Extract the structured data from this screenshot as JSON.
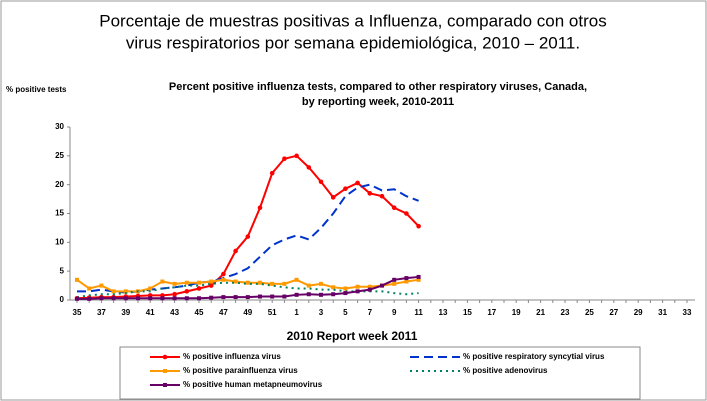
{
  "heading": [
    "Porcentaje de muestras positivas a Influenza, comparado con otros",
    "virus respiratorios por semana epidemiológica, 2010 – 2011."
  ],
  "chart_data": {
    "type": "line",
    "title": [
      "Percent positive influenza tests, compared to other respiratory viruses, Canada,",
      "by reporting week, 2010-2011"
    ],
    "y_label": "% positive tests",
    "x_label": "2010  Report week  2011",
    "categories": [
      "35",
      null,
      "37",
      null,
      "39",
      null,
      "41",
      null,
      "43",
      null,
      "45",
      null,
      "47",
      null,
      "49",
      null,
      "51",
      null,
      "1",
      null,
      "3",
      null,
      "5",
      null,
      "7",
      null,
      "9",
      null,
      "11",
      null,
      "13",
      null,
      "15",
      null,
      "17",
      null,
      "19",
      null,
      "21",
      null,
      "23",
      null,
      "25",
      null,
      "27",
      null,
      "29",
      null,
      "31",
      null,
      "33"
    ],
    "ylim": [
      0,
      30
    ],
    "yticks": [
      0,
      5,
      10,
      15,
      20,
      25,
      30
    ],
    "series": [
      {
        "name": "% positive influenza virus",
        "color": "#ff0000",
        "values": [
          0.3,
          0.4,
          0.5,
          0.5,
          0.6,
          0.7,
          0.8,
          0.8,
          1.0,
          1.5,
          2.0,
          2.5,
          4.5,
          8.5,
          11,
          16,
          22,
          24.5,
          25,
          23,
          20.5,
          17.8,
          19.3,
          20.3,
          18.5,
          18,
          16,
          15,
          12.8,
          null,
          null,
          null,
          null,
          null,
          null,
          null,
          null,
          null,
          null,
          null,
          null,
          null,
          null,
          null,
          null,
          null,
          null,
          null,
          null,
          null,
          null
        ]
      },
      {
        "name": "% positive respiratory syncytial virus",
        "color": "#0033cc",
        "values": [
          1.5,
          1.5,
          1.8,
          1.5,
          1.3,
          1.5,
          1.8,
          2,
          2.2,
          2.5,
          3,
          3.2,
          3.8,
          4.5,
          5.5,
          7.5,
          9.5,
          10.5,
          11.2,
          10.5,
          12.5,
          15,
          18,
          19.5,
          20,
          19,
          19.2,
          18,
          17.2,
          null,
          null,
          null,
          null,
          null,
          null,
          null,
          null,
          null,
          null,
          null,
          null,
          null,
          null,
          null,
          null,
          null,
          null,
          null,
          null,
          null,
          null
        ]
      },
      {
        "name": "% positive parainfluenza virus",
        "color": "#ff9900",
        "values": [
          3.5,
          2,
          2.5,
          1.5,
          1.5,
          1.5,
          2,
          3.2,
          2.8,
          3,
          3,
          3.2,
          3.5,
          3.2,
          3,
          3,
          2.8,
          2.8,
          3.5,
          2.5,
          2.8,
          2.2,
          2,
          2.3,
          2.3,
          2.5,
          2.8,
          3.2,
          3.5,
          null,
          null,
          null,
          null,
          null,
          null,
          null,
          null,
          null,
          null,
          null,
          null,
          null,
          null,
          null,
          null,
          null,
          null,
          null,
          null,
          null,
          null
        ]
      },
      {
        "name": "% positive adenovirus",
        "color": "#008060",
        "values": [
          0.5,
          0.8,
          1,
          1,
          1.2,
          1.5,
          1.5,
          2,
          2.2,
          2.5,
          2.5,
          2.8,
          3,
          3,
          2.8,
          2.8,
          2.5,
          2.2,
          2,
          2,
          1.8,
          1.8,
          1.5,
          1.5,
          1.5,
          1.5,
          1.2,
          1,
          1.2,
          null,
          null,
          null,
          null,
          null,
          null,
          null,
          null,
          null,
          null,
          null,
          null,
          null,
          null,
          null,
          null,
          null,
          null,
          null,
          null,
          null,
          null
        ]
      },
      {
        "name": "% positive human metapneumovirus",
        "color": "#660066",
        "values": [
          0.2,
          0.2,
          0.3,
          0.3,
          0.3,
          0.3,
          0.3,
          0.3,
          0.3,
          0.3,
          0.3,
          0.4,
          0.5,
          0.5,
          0.5,
          0.6,
          0.6,
          0.6,
          0.9,
          1,
          0.9,
          1,
          1.2,
          1.5,
          1.8,
          2.5,
          3.5,
          3.8,
          4,
          null,
          null,
          null,
          null,
          null,
          null,
          null,
          null,
          null,
          null,
          null,
          null,
          null,
          null,
          null,
          null,
          null,
          null,
          null,
          null,
          null,
          null
        ]
      }
    ]
  }
}
